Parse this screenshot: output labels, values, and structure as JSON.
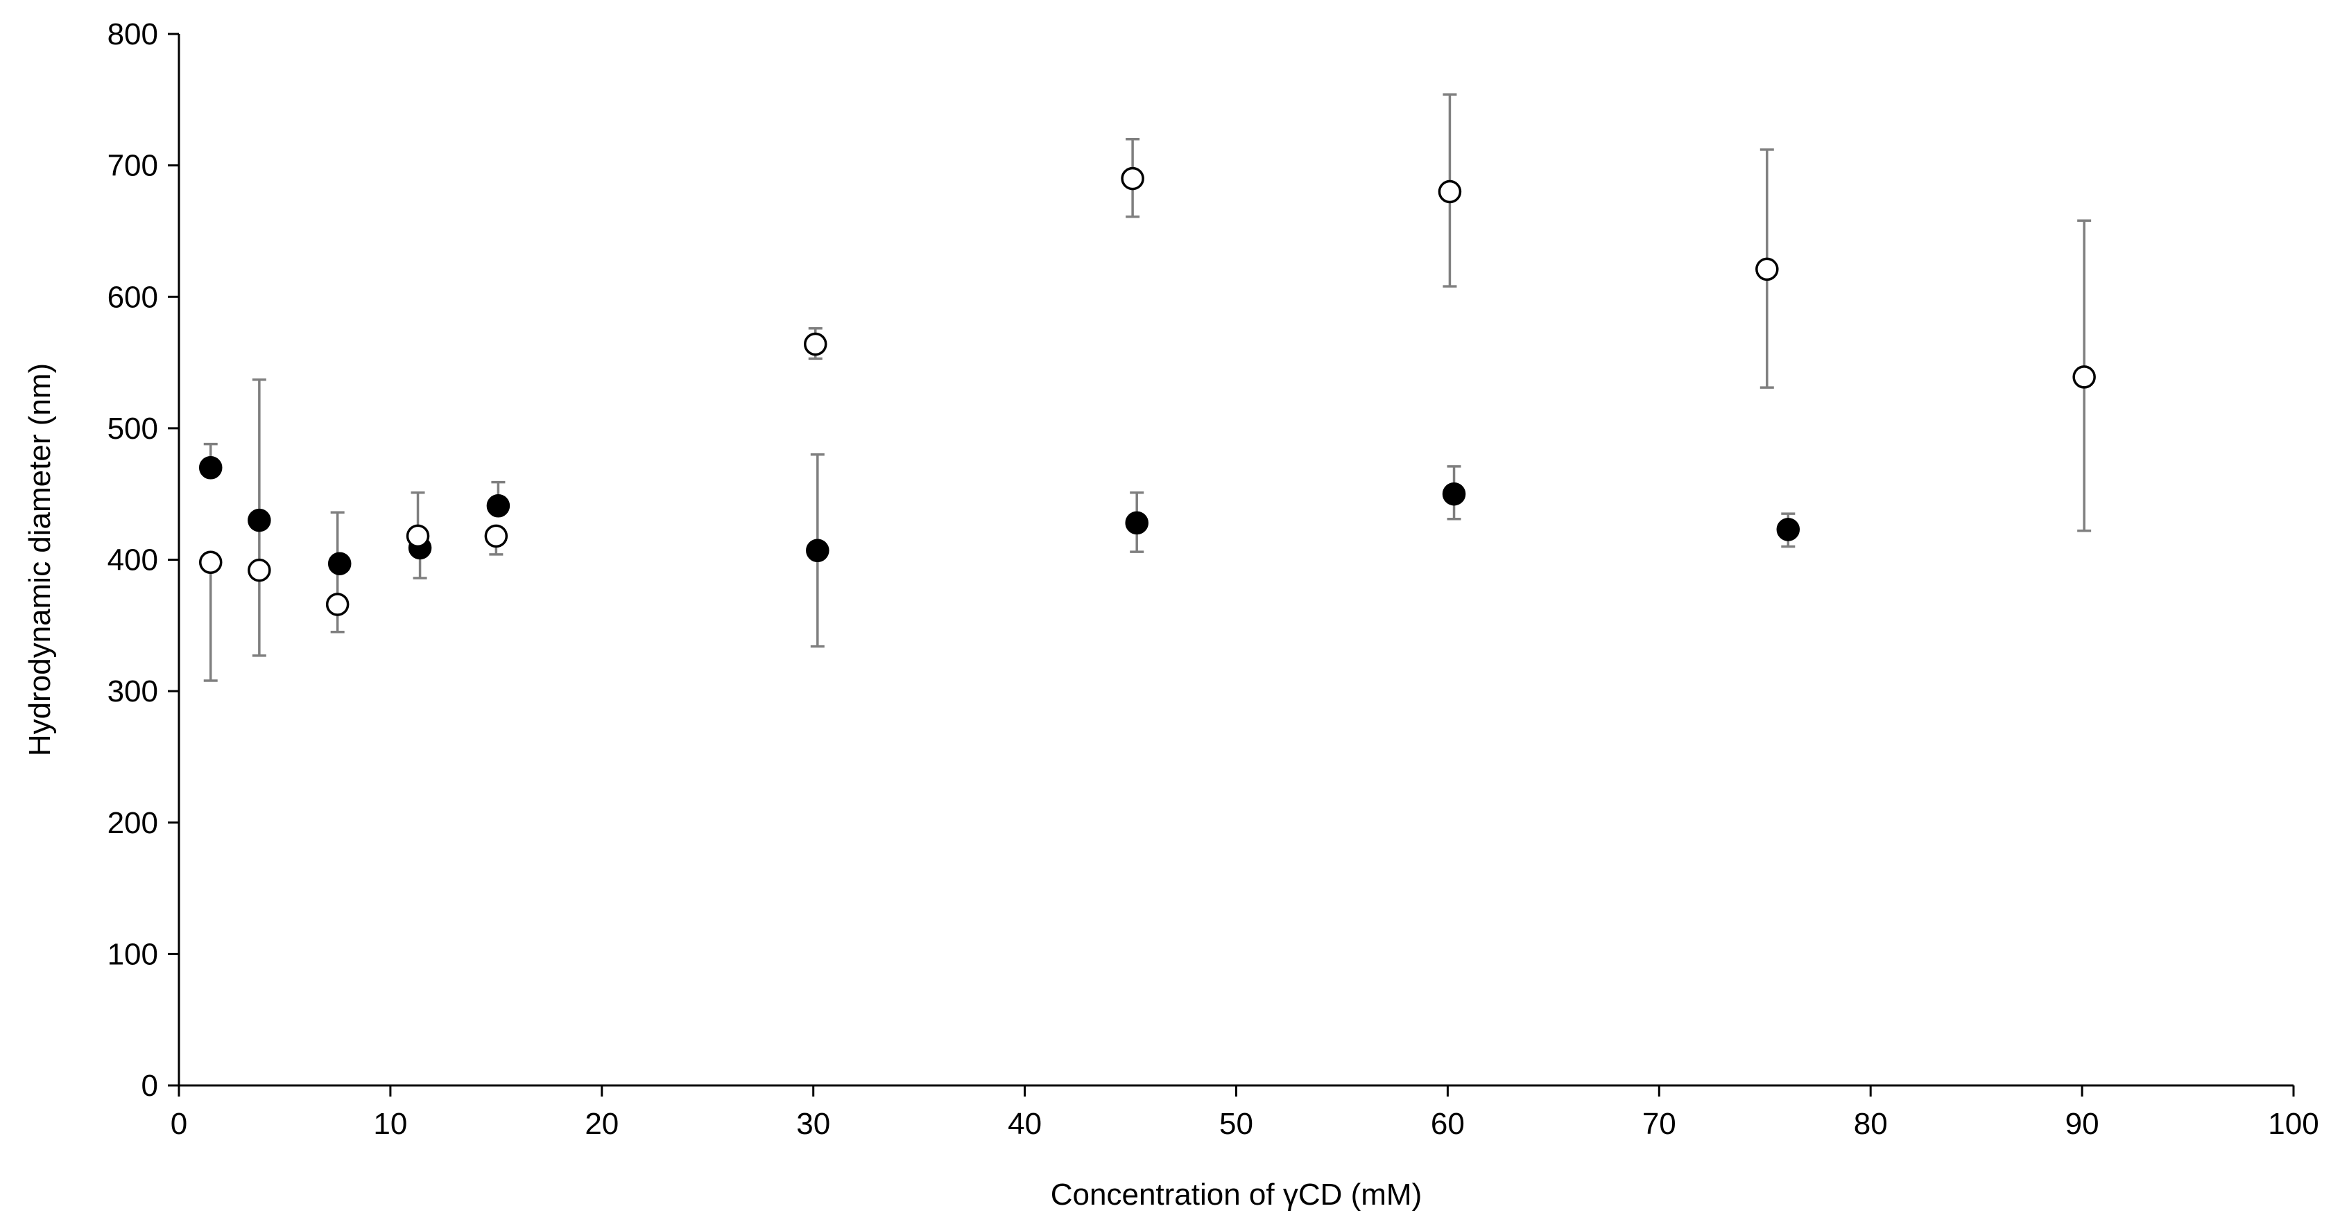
{
  "chart_data": {
    "type": "scatter",
    "title": "",
    "xlabel": "Concentration of γCD (mM)",
    "ylabel": "Hydrodynamic diameter (nm)",
    "xlim": [
      0,
      100
    ],
    "ylim": [
      0,
      800
    ],
    "xticks": [
      0,
      10,
      20,
      30,
      40,
      50,
      60,
      70,
      80,
      90,
      100
    ],
    "yticks": [
      0,
      100,
      200,
      300,
      400,
      500,
      600,
      700,
      800
    ],
    "grid": false,
    "legend": "none",
    "series": [
      {
        "marker": "filled-circle",
        "color": "#000000",
        "points": [
          {
            "x": 1.5,
            "y": 470,
            "err_low": 0,
            "err_high": 18
          },
          {
            "x": 3.8,
            "y": 430,
            "err_low": 0,
            "err_high": 0
          },
          {
            "x": 7.6,
            "y": 397,
            "err_low": 0,
            "err_high": 0
          },
          {
            "x": 11.4,
            "y": 409,
            "err_low": 23,
            "err_high": 0
          },
          {
            "x": 15.1,
            "y": 441,
            "err_low": 0,
            "err_high": 18
          },
          {
            "x": 30.2,
            "y": 407,
            "err_low": 73,
            "err_high": 73
          },
          {
            "x": 45.3,
            "y": 428,
            "err_low": 22,
            "err_high": 23
          },
          {
            "x": 60.3,
            "y": 450,
            "err_low": 19,
            "err_high": 21
          },
          {
            "x": 76.1,
            "y": 423,
            "err_low": 13,
            "err_high": 12
          }
        ]
      },
      {
        "marker": "open-circle",
        "color": "#000000",
        "points": [
          {
            "x": 1.5,
            "y": 398,
            "err_low": 90,
            "err_high": 0
          },
          {
            "x": 3.8,
            "y": 392,
            "err_low": 65,
            "err_high": 145
          },
          {
            "x": 7.5,
            "y": 366,
            "err_low": 21,
            "err_high": 70
          },
          {
            "x": 11.3,
            "y": 418,
            "err_low": 0,
            "err_high": 33
          },
          {
            "x": 15.0,
            "y": 418,
            "err_low": 14,
            "err_high": 0
          },
          {
            "x": 30.1,
            "y": 564,
            "err_low": 11,
            "err_high": 12
          },
          {
            "x": 45.1,
            "y": 690,
            "err_low": 29,
            "err_high": 30
          },
          {
            "x": 60.1,
            "y": 680,
            "err_low": 72,
            "err_high": 74
          },
          {
            "x": 75.1,
            "y": 621,
            "err_low": 90,
            "err_high": 91
          },
          {
            "x": 90.1,
            "y": 539,
            "err_low": 117,
            "err_high": 119
          }
        ]
      }
    ]
  }
}
